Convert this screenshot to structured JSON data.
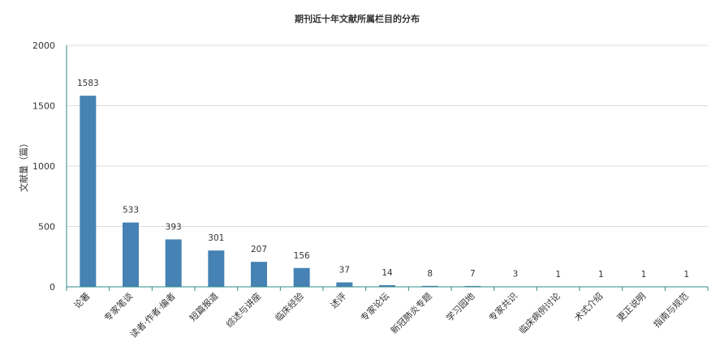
{
  "chart_data": {
    "type": "bar",
    "title": "期刊近十年文献所属栏目的分布",
    "xlabel": "",
    "ylabel": "文献量（篇）",
    "ylim": [
      0,
      2000
    ],
    "yticks": [
      0,
      500,
      1000,
      1500,
      2000
    ],
    "grid": true,
    "categories": [
      "论著",
      "专家笔谈",
      "读者·作者·编者",
      "短篇报道",
      "综述与讲座",
      "临床经验",
      "述评",
      "专家论坛",
      "新冠肺炎专题",
      "学习园地",
      "专家共识",
      "临床病例讨论",
      "术式介绍",
      "更正说明",
      "指南与规范"
    ],
    "values": [
      1583,
      533,
      393,
      301,
      207,
      156,
      37,
      14,
      8,
      7,
      3,
      1,
      1,
      1,
      1
    ],
    "colors": {
      "bar": "#4682b4",
      "axis": "#2e8b8b",
      "grid": "#dddddd"
    }
  }
}
